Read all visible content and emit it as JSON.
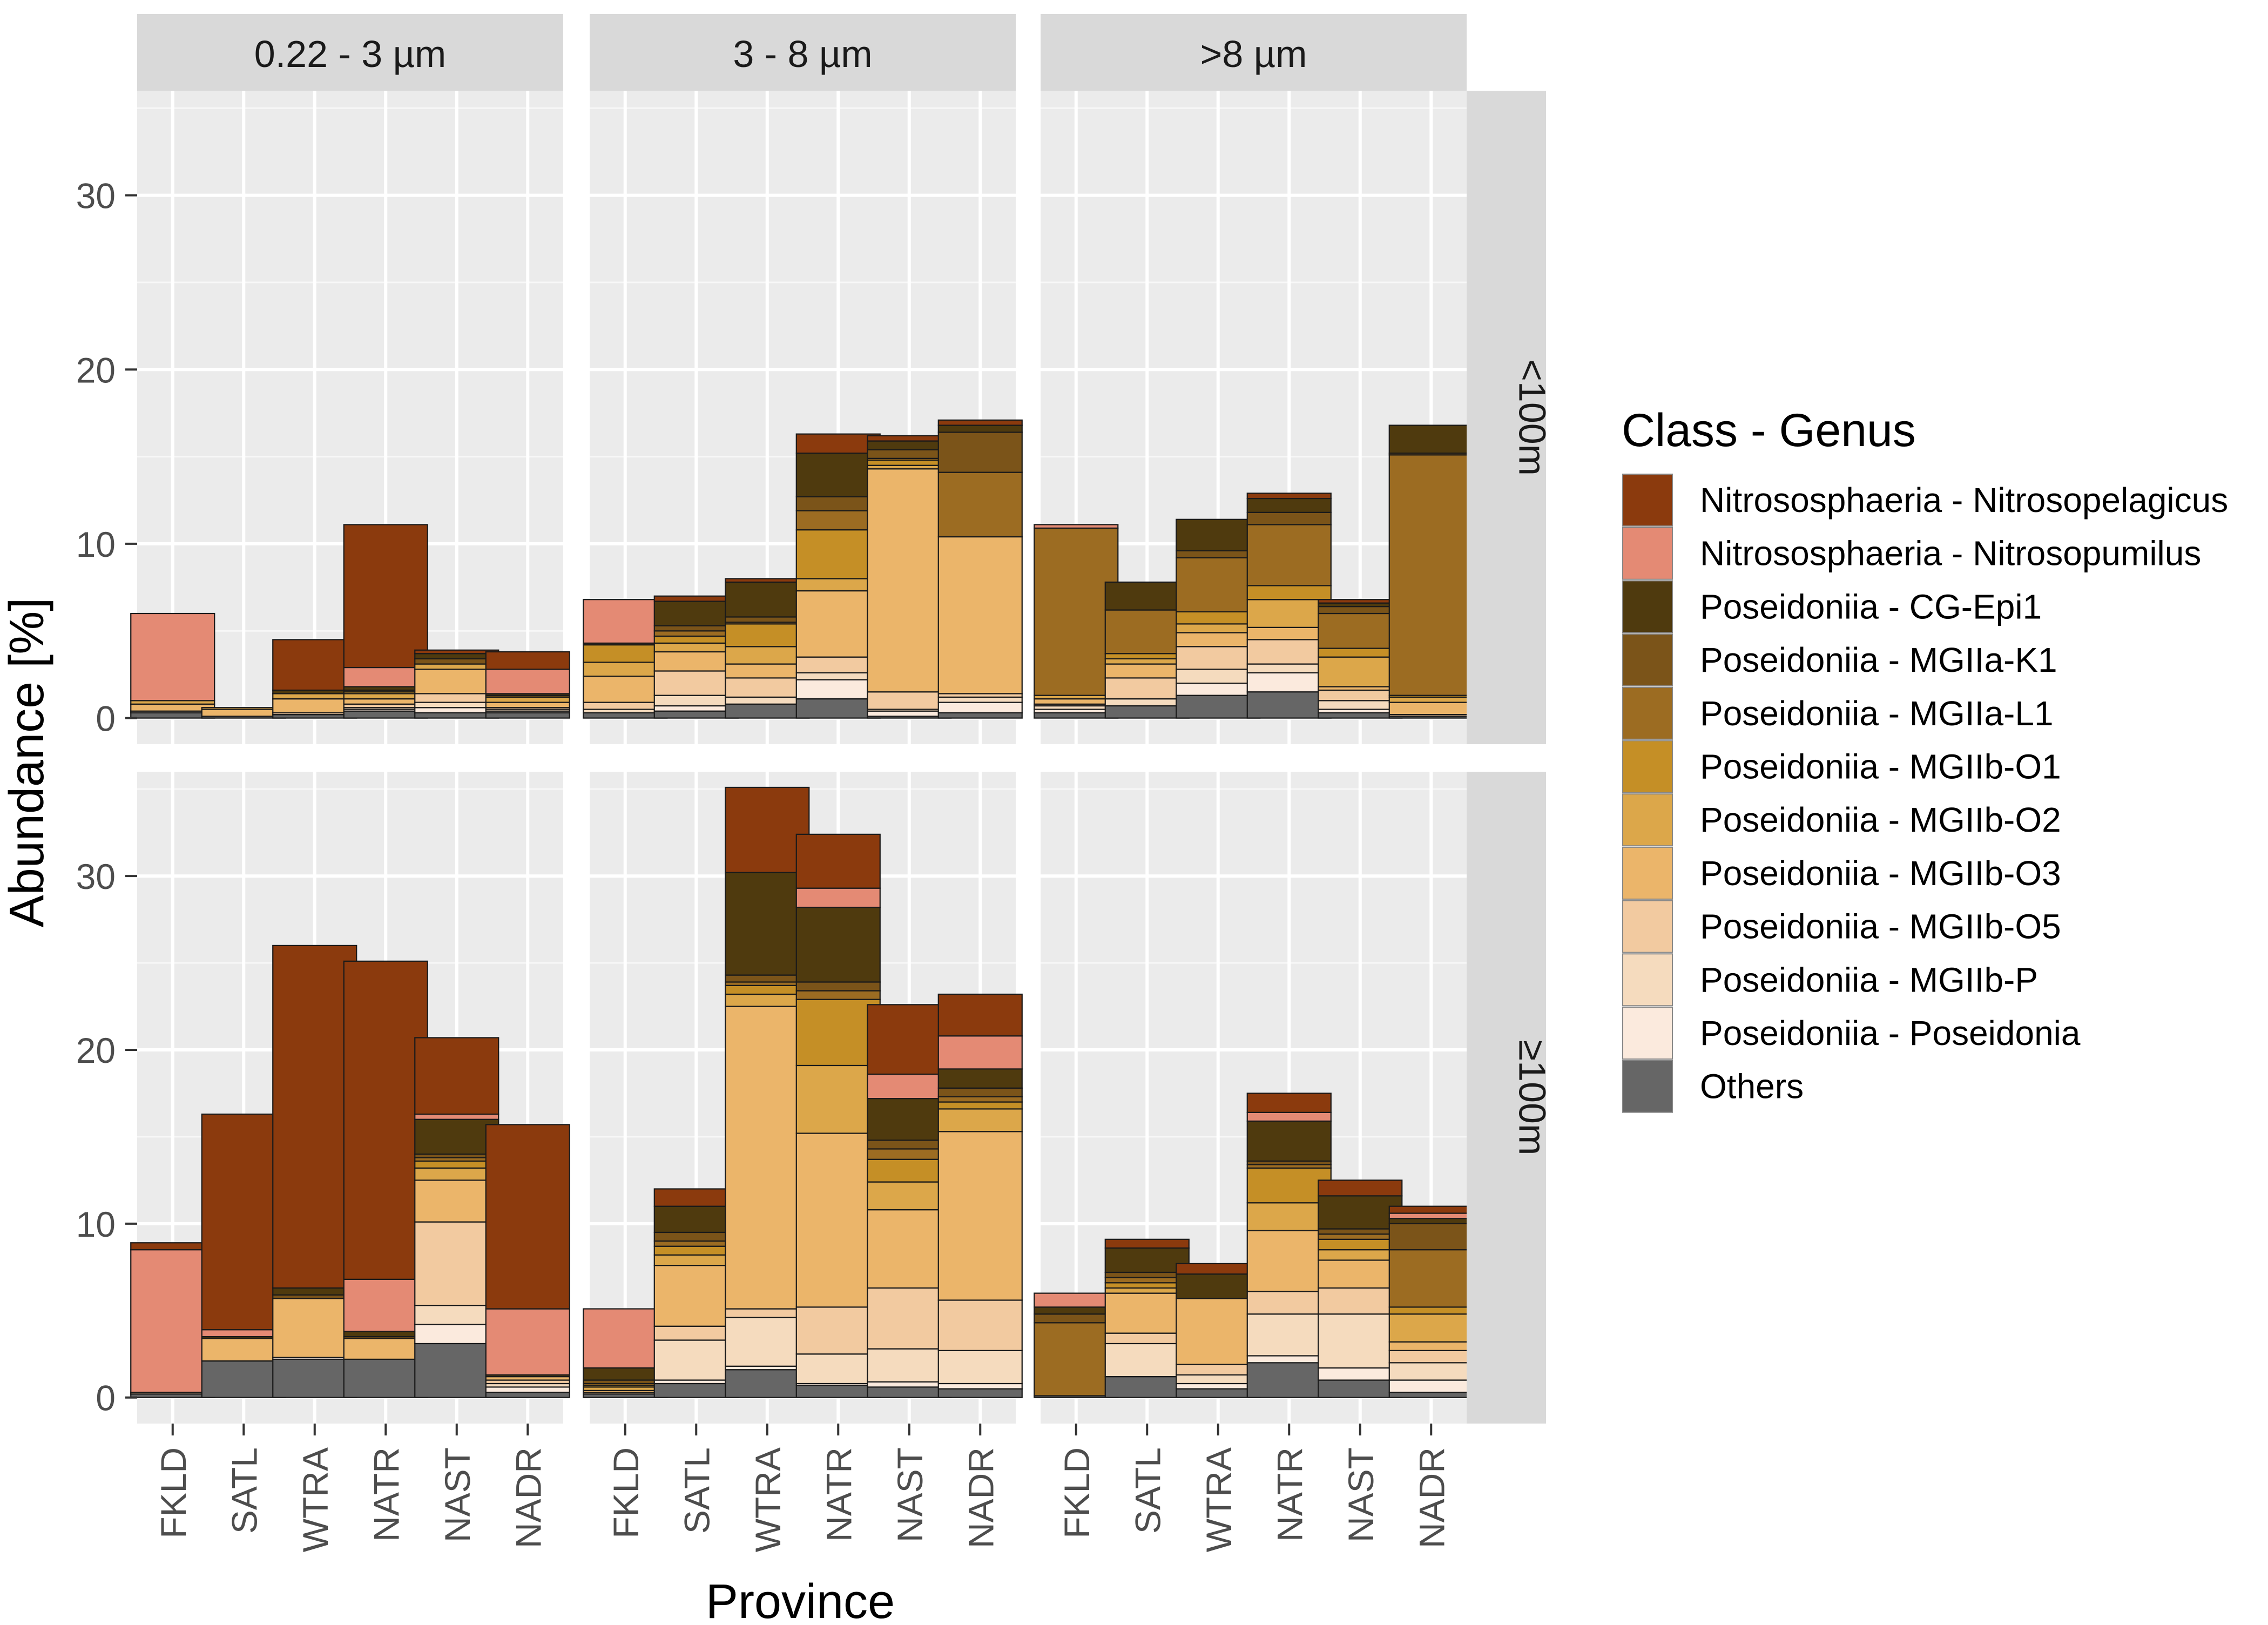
{
  "chart_data": {
    "type": "bar",
    "stacked": true,
    "facet_columns": [
      "0.22 - 3 µm",
      "3 - 8 µm",
      ">8 µm"
    ],
    "facet_rows": [
      "<100m",
      "≥100m"
    ],
    "categories": [
      "FKLD",
      "SATL",
      "WTRA",
      "NATR",
      "NAST",
      "NADR"
    ],
    "xlabel": "Province",
    "ylabel": "Abundance [%]",
    "ylim": [
      -1.5,
      36
    ],
    "yticks": [
      0,
      10,
      20,
      30
    ],
    "legend_title": "Class - Genus",
    "legend_position": "right",
    "grid": true,
    "series": [
      {
        "name": "Nitrososphaeria - Nitrosopelagicus",
        "color": "#8b3a0d"
      },
      {
        "name": "Nitrososphaeria - Nitrosopumilus",
        "color": "#e48a74"
      },
      {
        "name": "Poseidoniia - CG-Epi1",
        "color": "#4f3a0e"
      },
      {
        "name": "Poseidoniia - MGIIa-K1",
        "color": "#7b5419"
      },
      {
        "name": "Poseidoniia - MGIIa-L1",
        "color": "#9c6c22"
      },
      {
        "name": "Poseidoniia - MGIIb-O1",
        "color": "#c58f26"
      },
      {
        "name": "Poseidoniia - MGIIb-O2",
        "color": "#dca74a"
      },
      {
        "name": "Poseidoniia - MGIIb-O3",
        "color": "#ebb56a"
      },
      {
        "name": "Poseidoniia - MGIIb-O5",
        "color": "#f2caa0"
      },
      {
        "name": "Poseidoniia - MGIIb-P",
        "color": "#f5dbbe"
      },
      {
        "name": "Poseidoniia - Poseidonia",
        "color": "#fbeadd"
      },
      {
        "name": "Others",
        "color": "#666666"
      }
    ],
    "panels": [
      {
        "row": 0,
        "col": 0,
        "stacks": [
          [
            0,
            5,
            0,
            0,
            0,
            0,
            0.2,
            0.4,
            0,
            0,
            0.1,
            0.3
          ],
          [
            0,
            0,
            0,
            0,
            0,
            0,
            0.1,
            0.4,
            0,
            0,
            0,
            0.1
          ],
          [
            2.9,
            0,
            0.2,
            0,
            0,
            0,
            0.3,
            0.8,
            0.1,
            0,
            0,
            0.2
          ],
          [
            8.2,
            1.1,
            0.2,
            0.1,
            0,
            0.1,
            0.3,
            0.3,
            0.2,
            0.1,
            0.1,
            0.4
          ],
          [
            0.2,
            0,
            0.3,
            0.3,
            0,
            0,
            0.3,
            1.4,
            0.5,
            0.3,
            0.3,
            0.3
          ],
          [
            1,
            1.4,
            0.1,
            0.1,
            0,
            0,
            0.3,
            0.3,
            0.1,
            0.1,
            0.1,
            0.3
          ]
        ]
      },
      {
        "row": 0,
        "col": 1,
        "stacks": [
          [
            0,
            2.5,
            0,
            0,
            0.1,
            1,
            0.8,
            1.5,
            0.4,
            0.2,
            0,
            0.3
          ],
          [
            0.3,
            0,
            1.4,
            0.3,
            0.3,
            0.4,
            0.5,
            1.1,
            1.4,
            0.6,
            0.3,
            0.4
          ],
          [
            0.2,
            0,
            2,
            0.3,
            0.1,
            1.3,
            1,
            0.8,
            1.1,
            0.4,
            0,
            0.8
          ],
          [
            1.1,
            0,
            2.5,
            0.8,
            1.1,
            2.8,
            0.7,
            3.8,
            0.9,
            0.4,
            1.1,
            1.1
          ],
          [
            0.3,
            0,
            0.5,
            0.5,
            0.1,
            0.3,
            0.2,
            12.8,
            1,
            0.1,
            0.3,
            0.1
          ],
          [
            0.3,
            0,
            0.4,
            2.3,
            3.7,
            0,
            0,
            9,
            0.2,
            0.3,
            0.6,
            0.3
          ]
        ]
      },
      {
        "row": 0,
        "col": 2,
        "stacks": [
          [
            0,
            0.2,
            0,
            0,
            9.6,
            0,
            0.2,
            0.3,
            0.1,
            0.2,
            0.2,
            0.3
          ],
          [
            0,
            0,
            1.6,
            0,
            2.5,
            0.3,
            0.3,
            0.8,
            1.2,
            0.4,
            0,
            0.7
          ],
          [
            0,
            0,
            1.8,
            0.4,
            3.1,
            0.7,
            0.5,
            0.8,
            1.3,
            0.8,
            0.7,
            1.3
          ],
          [
            0.3,
            0,
            0.8,
            0.7,
            3.5,
            0.8,
            1.6,
            0.7,
            1.4,
            0.5,
            1.1,
            1.5
          ],
          [
            0.2,
            0,
            0.2,
            0.4,
            2,
            0.5,
            1.7,
            0.2,
            0.6,
            0.5,
            0.2,
            0.3
          ],
          [
            0,
            0,
            1.6,
            0.1,
            13.8,
            0.1,
            0.3,
            0.7,
            0.1,
            0,
            0,
            0.1
          ]
        ]
      },
      {
        "row": 1,
        "col": 0,
        "stacks": [
          [
            0.4,
            8.2,
            0,
            0,
            0,
            0,
            0,
            0,
            0.1,
            0,
            0,
            0.2
          ],
          [
            12.4,
            0.4,
            0.1,
            0,
            0,
            0,
            0,
            1.3,
            0,
            0,
            0,
            2.1
          ],
          [
            19.7,
            0,
            0.4,
            0.2,
            0,
            0,
            0,
            3.4,
            0,
            0,
            0.1,
            2.2
          ],
          [
            18.3,
            3,
            0.3,
            0.1,
            0,
            0,
            0,
            1.2,
            0,
            0,
            0,
            2.2
          ],
          [
            4.4,
            0.3,
            2,
            0.2,
            0.2,
            0.4,
            0.7,
            2.4,
            4.8,
            1.1,
            1.1,
            3.1
          ],
          [
            10.6,
            3.8,
            0.1,
            0,
            0,
            0,
            0,
            0.2,
            0.2,
            0.2,
            0.3,
            0.3
          ]
        ]
      },
      {
        "row": 1,
        "col": 1,
        "stacks": [
          [
            0,
            3.4,
            0.7,
            0.2,
            0.1,
            0.1,
            0.2,
            0.1,
            0.1,
            0,
            0,
            0.2
          ],
          [
            1,
            0,
            1.5,
            0.5,
            0.3,
            0.5,
            0.6,
            3.5,
            0.8,
            2.3,
            0.2,
            0.8
          ],
          [
            4.9,
            0,
            5.9,
            0.4,
            0.2,
            0.5,
            0.7,
            17.4,
            0.5,
            2.8,
            0.2,
            1.6
          ],
          [
            3.1,
            1.1,
            4.3,
            0.5,
            0.5,
            3.8,
            3.9,
            10,
            2.7,
            1.7,
            0.1,
            0.7
          ],
          [
            4,
            1.4,
            2.4,
            0.5,
            0.6,
            1.3,
            1.6,
            4.5,
            3.5,
            1.9,
            0.3,
            0.6
          ],
          [
            2.4,
            1.9,
            1.1,
            0.5,
            0.3,
            0.4,
            1.3,
            9.7,
            2.9,
            1.9,
            0.3,
            0.5
          ]
        ]
      },
      {
        "row": 1,
        "col": 2,
        "stacks": [
          [
            0,
            0.8,
            0.4,
            0.5,
            4.2,
            0,
            0,
            0,
            0,
            0,
            0,
            0.1
          ],
          [
            0.5,
            0,
            1.4,
            0.3,
            0.3,
            0.3,
            0.3,
            2.3,
            0.6,
            1.9,
            0,
            1.2
          ],
          [
            0.6,
            0,
            1.4,
            0,
            0,
            0,
            0,
            3.8,
            0.6,
            0.5,
            0.3,
            0.5
          ],
          [
            1.1,
            0.5,
            2.3,
            0.2,
            0.2,
            2,
            1.6,
            3.5,
            1.3,
            2.4,
            0.4,
            2
          ],
          [
            0.9,
            0,
            1.9,
            0.3,
            0.3,
            0.6,
            0.6,
            1.6,
            1.5,
            3.1,
            0.7,
            1
          ],
          [
            0.4,
            0.3,
            0.3,
            1.5,
            3.3,
            0.4,
            1.6,
            0.5,
            0.7,
            1,
            0.7,
            0.3
          ]
        ]
      }
    ]
  }
}
